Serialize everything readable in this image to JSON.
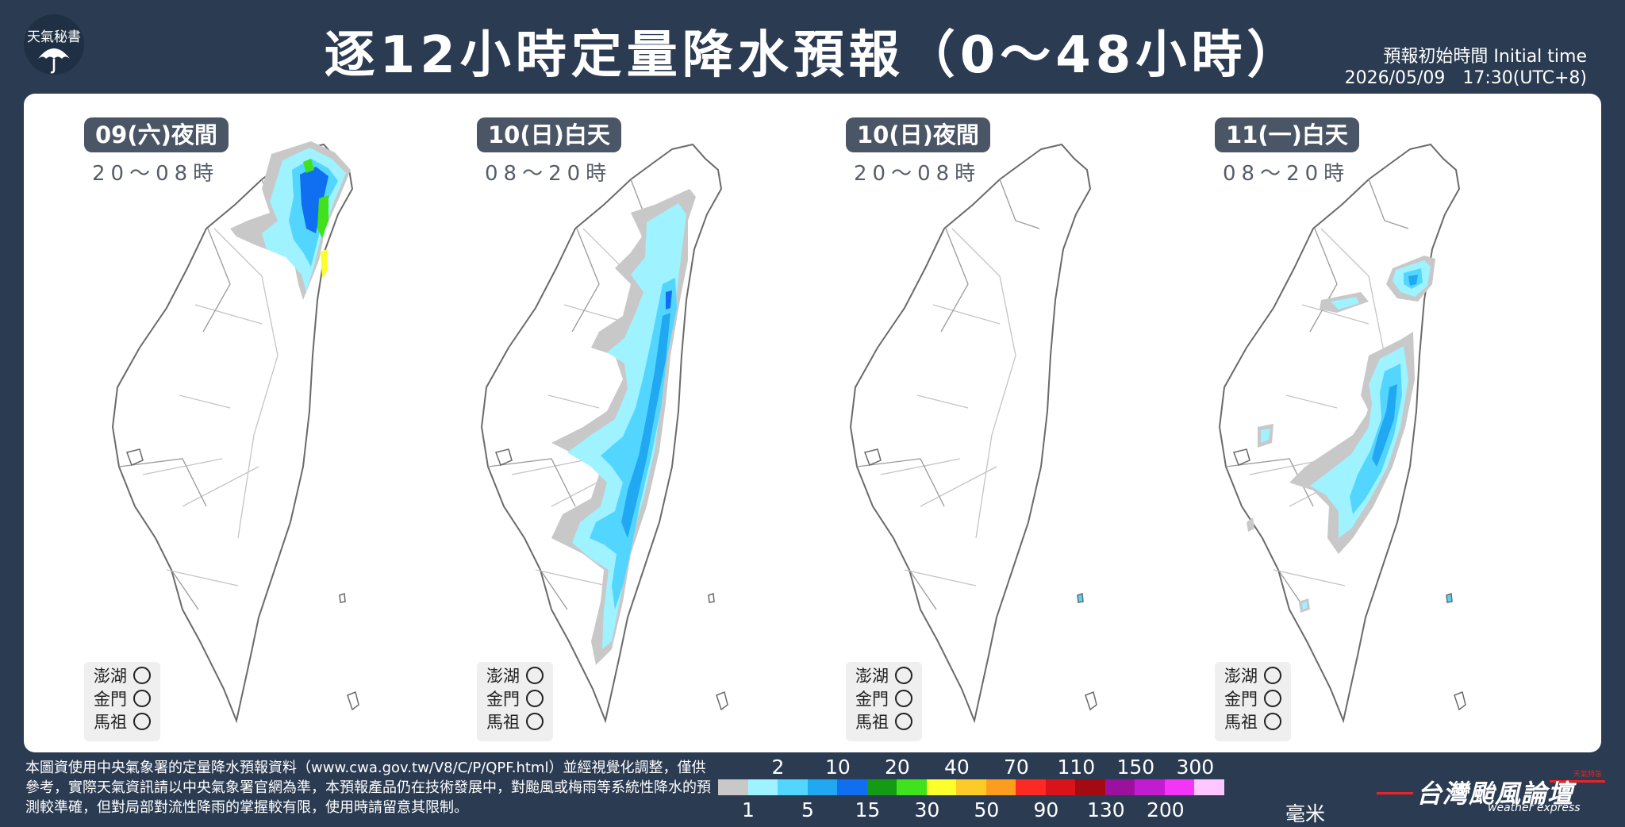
{
  "header": {
    "logo_text": "天氣秘書",
    "title": "逐12小時定量降水預報（0～48小時）",
    "initial_time_label": "預報初始時間 Initial time",
    "initial_time_value": "2026/05/09　17:30(UTC+8)"
  },
  "maps": [
    {
      "period": "09(六)夜間",
      "hours": "20～08時",
      "rain_focus": "north-northeast"
    },
    {
      "period": "10(日)白天",
      "hours": "08～20時",
      "rain_focus": "central-east mountains"
    },
    {
      "period": "10(日)夜間",
      "hours": "20～08時",
      "rain_focus": "none"
    },
    {
      "period": "11(一)白天",
      "hours": "08～20時",
      "rain_focus": "east mountains"
    }
  ],
  "outer_islands": {
    "labels": [
      "澎湖",
      "金門",
      "馬祖"
    ],
    "marker": "○"
  },
  "footnote": "本圖資使用中央氣象署的定量降水預報資料（www.cwa.gov.tw/V8/C/P/QPF.html）並經視覺化調整，僅供參考，實際天氣資訊請以中央氣象署官網為準，本預報產品仍在技術發展中，對颱風或梅雨等系統性降水的預測較準確，但對局部對流性降雨的掌握較有限，使用時請留意其限制。",
  "legend": {
    "colors": [
      "#c8c8c8",
      "#9ff2ff",
      "#52d6ff",
      "#21a8f2",
      "#0f6ff0",
      "#139b16",
      "#3fe21d",
      "#fcff2b",
      "#fdcb28",
      "#fd9d1e",
      "#fb2a22",
      "#d9131a",
      "#a20b11",
      "#9b119e",
      "#c21cd0",
      "#f434f7",
      "#ffc6ff"
    ],
    "top_labels": [
      "2",
      "10",
      "20",
      "40",
      "70",
      "110",
      "150",
      "300"
    ],
    "bottom_labels": [
      "1",
      "5",
      "15",
      "30",
      "50",
      "90",
      "130",
      "200"
    ],
    "unit": "毫米"
  },
  "brand": {
    "name": "台灣颱風論壇",
    "subtitle": "weather express",
    "tag": "天氣特急"
  }
}
